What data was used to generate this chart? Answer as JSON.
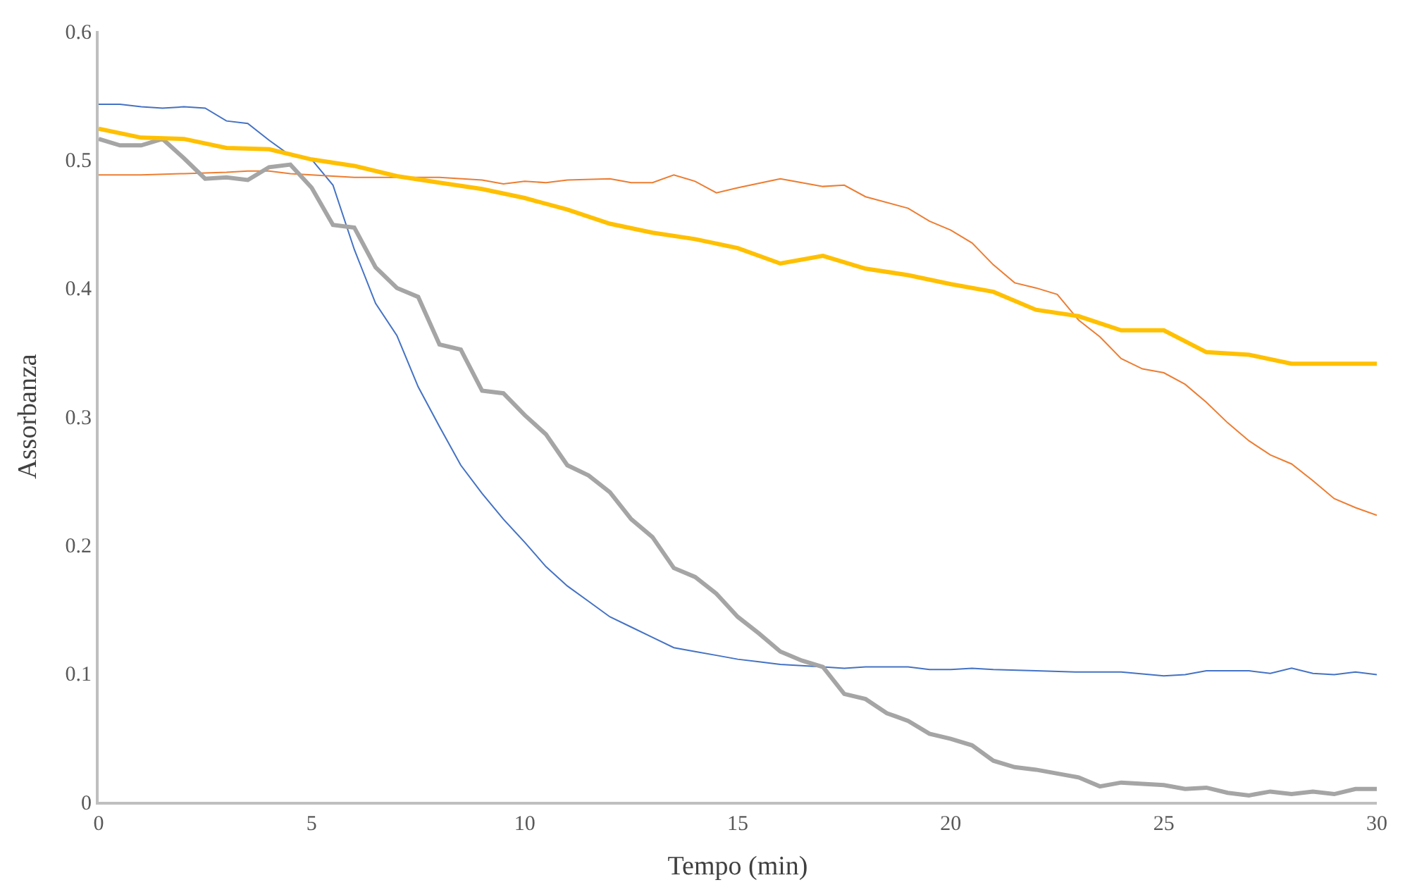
{
  "chart_data": {
    "type": "line",
    "xlabel": "Tempo (min)",
    "ylabel": "Assorbanza",
    "xlim": [
      0,
      30
    ],
    "xticks": [
      0,
      5,
      10,
      15,
      20,
      25,
      30
    ],
    "ylim": [
      0,
      0.6
    ],
    "yticks": [
      0,
      0.1,
      0.2,
      0.3,
      0.4,
      0.5,
      0.6
    ],
    "grid": false,
    "marker": "none",
    "line_style": "solid",
    "series": [
      {
        "color": "#4472c4",
        "x": [
          0,
          0.5,
          1,
          1.5,
          2,
          2.5,
          3,
          3.5,
          4,
          4.5,
          5,
          5.5,
          6,
          6.5,
          7,
          7.5,
          8,
          8.5,
          9,
          9.5,
          10,
          10.5,
          11,
          11.5,
          12,
          12.5,
          13,
          13.5,
          14,
          14.5,
          15,
          15.5,
          16,
          16.5,
          17,
          17.5,
          18,
          19,
          19.5,
          20,
          20.5,
          21,
          22,
          23,
          24,
          25,
          25.5,
          26,
          27,
          27.5,
          28,
          28.5,
          29,
          29.5,
          30
        ],
        "values": [
          0.543,
          0.543,
          0.541,
          0.54,
          0.541,
          0.54,
          0.53,
          0.528,
          0.515,
          0.503,
          0.5,
          0.48,
          0.43,
          0.388,
          0.363,
          0.323,
          0.292,
          0.262,
          0.24,
          0.22,
          0.202,
          0.183,
          0.168,
          0.156,
          0.144,
          0.136,
          0.128,
          0.12,
          0.117,
          0.114,
          0.111,
          0.109,
          0.107,
          0.106,
          0.105,
          0.104,
          0.105,
          0.105,
          0.103,
          0.103,
          0.104,
          0.103,
          0.102,
          0.101,
          0.101,
          0.098,
          0.099,
          0.102,
          0.102,
          0.1,
          0.104,
          0.1,
          0.099,
          0.101,
          0.099
        ]
      },
      {
        "color": "#ed7d31",
        "x": [
          0,
          1,
          2,
          3,
          3.5,
          4,
          4.5,
          5,
          6,
          7,
          8,
          9,
          9.5,
          10,
          10.5,
          11,
          12,
          12.5,
          13,
          13.5,
          14,
          14.5,
          15,
          16,
          17,
          17.5,
          18,
          19,
          19.5,
          20,
          20.5,
          21,
          21.5,
          22,
          22.5,
          23,
          23.5,
          24,
          24.5,
          25,
          25.5,
          26,
          26.5,
          27,
          27.5,
          28,
          28.5,
          29,
          29.5,
          30
        ],
        "values": [
          0.488,
          0.488,
          0.489,
          0.49,
          0.491,
          0.491,
          0.489,
          0.488,
          0.486,
          0.486,
          0.486,
          0.484,
          0.481,
          0.483,
          0.482,
          0.484,
          0.485,
          0.482,
          0.482,
          0.488,
          0.483,
          0.474,
          0.478,
          0.485,
          0.479,
          0.48,
          0.471,
          0.462,
          0.452,
          0.445,
          0.435,
          0.418,
          0.404,
          0.4,
          0.395,
          0.375,
          0.362,
          0.345,
          0.337,
          0.334,
          0.325,
          0.311,
          0.295,
          0.281,
          0.27,
          0.263,
          0.25,
          0.236,
          0.229,
          0.223
        ]
      },
      {
        "color": "#a5a5a5",
        "x": [
          0,
          0.5,
          1,
          1.5,
          2,
          2.5,
          3,
          3.5,
          4,
          4.5,
          5,
          5.5,
          6,
          6.5,
          7,
          7.5,
          8,
          8.5,
          9,
          9.5,
          10,
          10.5,
          11,
          11.5,
          12,
          12.5,
          13,
          13.5,
          14,
          14.5,
          15,
          15.5,
          16,
          16.5,
          17,
          17.5,
          18,
          18.5,
          19,
          19.5,
          20,
          20.5,
          21,
          21.5,
          22,
          22.5,
          23,
          23.5,
          24,
          24.5,
          25,
          25.5,
          26,
          26.5,
          27,
          27.5,
          28,
          28.5,
          29,
          29.5,
          30
        ],
        "values": [
          0.516,
          0.511,
          0.511,
          0.516,
          0.501,
          0.485,
          0.486,
          0.484,
          0.494,
          0.496,
          0.478,
          0.449,
          0.447,
          0.416,
          0.4,
          0.393,
          0.356,
          0.352,
          0.32,
          0.318,
          0.301,
          0.286,
          0.262,
          0.254,
          0.241,
          0.22,
          0.206,
          0.182,
          0.175,
          0.162,
          0.144,
          0.131,
          0.117,
          0.11,
          0.105,
          0.084,
          0.08,
          0.069,
          0.063,
          0.053,
          0.049,
          0.044,
          0.032,
          0.027,
          0.025,
          0.022,
          0.019,
          0.012,
          0.015,
          0.014,
          0.013,
          0.01,
          0.011,
          0.007,
          0.005,
          0.008,
          0.006,
          0.008,
          0.006,
          0.01,
          0.01
        ]
      },
      {
        "color": "#ffc000",
        "x": [
          0,
          1,
          2,
          3,
          4,
          5,
          6,
          7,
          8,
          9,
          10,
          11,
          12,
          13,
          14,
          15,
          16,
          17,
          18,
          19,
          20,
          21,
          22,
          23,
          24,
          25,
          26,
          27,
          28,
          29,
          30
        ],
        "values": [
          0.524,
          0.517,
          0.516,
          0.509,
          0.508,
          0.5,
          0.495,
          0.487,
          0.482,
          0.477,
          0.47,
          0.461,
          0.45,
          0.443,
          0.438,
          0.431,
          0.419,
          0.425,
          0.415,
          0.41,
          0.403,
          0.397,
          0.383,
          0.378,
          0.367,
          0.367,
          0.35,
          0.348,
          0.341,
          0.341,
          0.341
        ]
      }
    ]
  }
}
